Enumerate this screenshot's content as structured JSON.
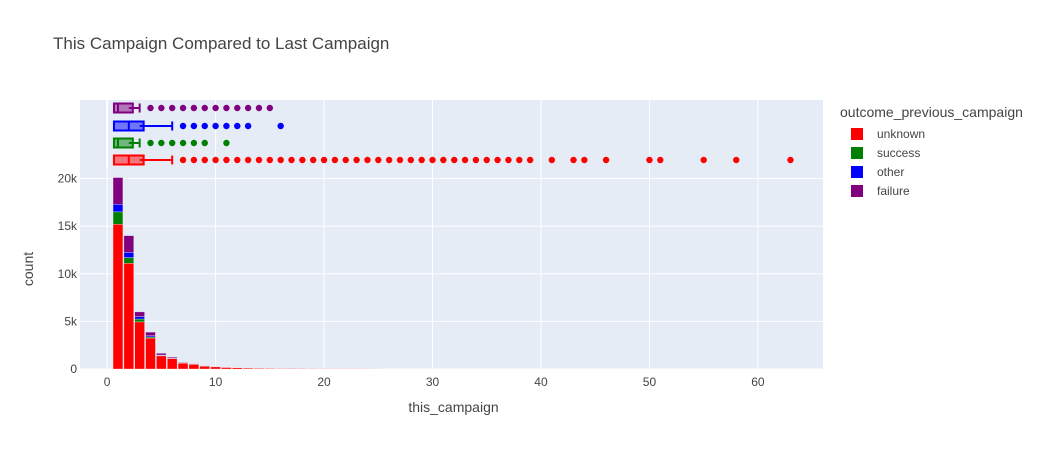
{
  "title": "This Campaign Compared to Last Campaign",
  "legend": {
    "title": "outcome_previous_campaign",
    "items": [
      {
        "label": "unknown",
        "color": "#ff0000"
      },
      {
        "label": "success",
        "color": "#008000"
      },
      {
        "label": "other",
        "color": "#0000ff"
      },
      {
        "label": "failure",
        "color": "#800080"
      }
    ]
  },
  "chart_data": {
    "type": "bar",
    "subtype": "stacked histogram with marginal box plots",
    "title": "This Campaign Compared to Last Campaign",
    "xlabel": "this_campaign",
    "ylabel": "count",
    "xlim": [
      -2.5,
      66
    ],
    "ylim": [
      0,
      21000
    ],
    "x_ticks": [
      0,
      10,
      20,
      30,
      40,
      50,
      60
    ],
    "x_tick_labels": [
      "0",
      "10",
      "20",
      "30",
      "40",
      "50",
      "60"
    ],
    "y_ticks": [
      0,
      5000,
      10000,
      15000,
      20000
    ],
    "y_tick_labels": [
      "0",
      "5k",
      "10k",
      "15k",
      "20k"
    ],
    "grid": true,
    "legend_position": "right",
    "bin_centers": [
      1,
      2,
      3,
      4,
      5,
      6,
      7,
      8,
      9,
      10,
      11,
      12,
      13,
      14,
      15,
      16,
      17,
      18,
      19,
      20,
      21,
      22,
      23,
      24,
      25
    ],
    "series": [
      {
        "name": "unknown",
        "color": "#ff0000",
        "values": [
          15200,
          11100,
          4950,
          3250,
          1380,
          1100,
          620,
          490,
          290,
          230,
          170,
          140,
          110,
          75,
          65,
          55,
          50,
          40,
          30,
          25,
          22,
          18,
          15,
          12,
          10
        ]
      },
      {
        "name": "success",
        "color": "#008000",
        "values": [
          1300,
          600,
          300,
          120,
          40,
          25,
          12,
          8,
          4,
          2,
          1,
          0,
          0,
          0,
          0,
          0,
          0,
          0,
          0,
          0,
          0,
          0,
          0,
          0,
          0
        ]
      },
      {
        "name": "other",
        "color": "#0000ff",
        "values": [
          800,
          550,
          250,
          120,
          50,
          25,
          15,
          10,
          6,
          4,
          3,
          2,
          1,
          0,
          0,
          1,
          0,
          0,
          0,
          0,
          0,
          0,
          0,
          0,
          0
        ]
      },
      {
        "name": "failure",
        "color": "#800080",
        "values": [
          2800,
          1750,
          500,
          380,
          180,
          100,
          60,
          40,
          30,
          20,
          12,
          10,
          8,
          5,
          3,
          0,
          0,
          0,
          0,
          0,
          0,
          0,
          0,
          0,
          0
        ]
      }
    ],
    "box_plots": [
      {
        "name": "unknown",
        "color": "#ff0000",
        "min": 1,
        "q1": 1,
        "median": 2,
        "q3": 3,
        "upper_fence": 6,
        "outliers": [
          7,
          8,
          9,
          10,
          11,
          12,
          13,
          14,
          15,
          16,
          17,
          18,
          19,
          20,
          21,
          22,
          23,
          24,
          25,
          26,
          27,
          28,
          29,
          30,
          31,
          32,
          33,
          34,
          35,
          36,
          37,
          38,
          39,
          41,
          43,
          44,
          46,
          50,
          51,
          55,
          58,
          63
        ]
      },
      {
        "name": "success",
        "color": "#008000",
        "min": 1,
        "q1": 1,
        "median": 1,
        "q3": 2,
        "upper_fence": 3,
        "outliers": [
          4,
          5,
          6,
          7,
          8,
          9,
          11
        ]
      },
      {
        "name": "other",
        "color": "#0000ff",
        "min": 1,
        "q1": 1,
        "median": 2,
        "q3": 3,
        "upper_fence": 6,
        "outliers": [
          7,
          8,
          9,
          10,
          11,
          12,
          13,
          16
        ]
      },
      {
        "name": "failure",
        "color": "#800080",
        "min": 1,
        "q1": 1,
        "median": 1,
        "q3": 2,
        "upper_fence": 3,
        "outliers": [
          4,
          5,
          6,
          7,
          8,
          9,
          10,
          11,
          12,
          13,
          14,
          15
        ]
      }
    ]
  }
}
